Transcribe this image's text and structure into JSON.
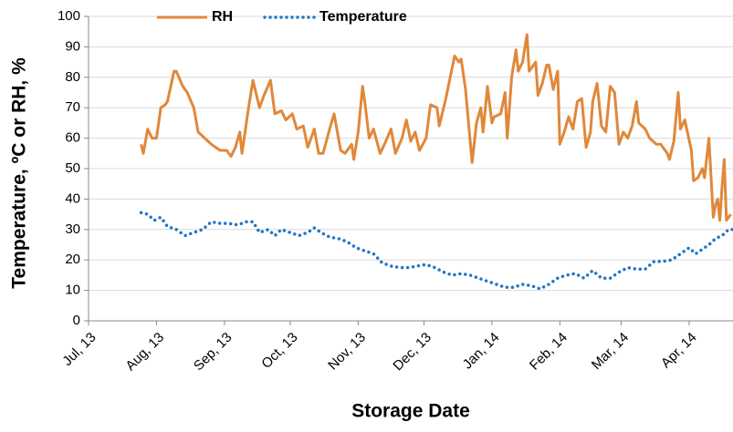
{
  "chart_data": {
    "type": "line",
    "x_label": "Storage Date",
    "y_label": "Temperature, ºC or RH, %",
    "xlim": [
      0,
      294
    ],
    "xticks": [
      {
        "value": 0,
        "label": "Jul, 13"
      },
      {
        "value": 31,
        "label": "Aug, 13"
      },
      {
        "value": 62,
        "label": "Sep, 13"
      },
      {
        "value": 92,
        "label": "Oct, 13"
      },
      {
        "value": 123,
        "label": "Nov, 13"
      },
      {
        "value": 153,
        "label": "Dec, 13"
      },
      {
        "value": 184,
        "label": "Jan, 14"
      },
      {
        "value": 215,
        "label": "Feb, 14"
      },
      {
        "value": 243,
        "label": "Mar, 14"
      },
      {
        "value": 274,
        "label": "Apr, 14"
      }
    ],
    "ylim": [
      0,
      100
    ],
    "yticks": [
      0,
      10,
      20,
      30,
      40,
      50,
      60,
      70,
      80,
      90,
      100
    ],
    "grid": true,
    "legend": "top",
    "series": [
      {
        "name": "RH",
        "color": "#e0883a",
        "style": "solid",
        "x": [
          24,
          25,
          27,
          29,
          31,
          33,
          35,
          36,
          39,
          40,
          43,
          45,
          48,
          50,
          53,
          56,
          60,
          63,
          65,
          67,
          69,
          70,
          73,
          75,
          78,
          80,
          83,
          85,
          88,
          90,
          93,
          95,
          98,
          100,
          103,
          105,
          107,
          110,
          112,
          115,
          117,
          120,
          121,
          123,
          125,
          126,
          128,
          130,
          133,
          135,
          138,
          140,
          143,
          145,
          147,
          149,
          151,
          154,
          156,
          159,
          160,
          163,
          165,
          167,
          169,
          170,
          172,
          174,
          175,
          177,
          179,
          180,
          182,
          184,
          185,
          188,
          190,
          191,
          193,
          195,
          196,
          198,
          200,
          201,
          204,
          205,
          207,
          209,
          210,
          212,
          214,
          215,
          217,
          219,
          221,
          223,
          225,
          227,
          229,
          230,
          232,
          234,
          236,
          238,
          240,
          242,
          244,
          246,
          248,
          250,
          251,
          254,
          256,
          259,
          261,
          264,
          265,
          267,
          269,
          270,
          272,
          275,
          276,
          278,
          280,
          281,
          283,
          285,
          286,
          287,
          288,
          289,
          290,
          291,
          293
        ],
        "values": [
          58,
          55,
          63,
          60,
          60,
          70,
          71,
          72,
          82,
          82,
          77,
          75,
          70,
          62,
          60,
          58,
          56,
          56,
          54,
          57,
          62,
          55,
          70,
          79,
          70,
          74,
          79,
          68,
          69,
          66,
          68,
          63,
          64,
          57,
          63,
          55,
          55,
          63,
          68,
          56,
          55,
          58,
          53,
          62,
          77,
          72,
          60,
          63,
          55,
          58,
          63,
          55,
          60,
          66,
          59,
          62,
          56,
          60,
          71,
          70,
          64,
          73,
          80,
          87,
          85,
          86,
          76,
          60,
          52,
          65,
          70,
          62,
          77,
          65,
          67,
          68,
          75,
          60,
          80,
          89,
          82,
          85,
          94,
          82,
          85,
          74,
          78,
          84,
          84,
          76,
          82,
          58,
          62,
          67,
          63,
          72,
          73,
          57,
          62,
          72,
          78,
          64,
          62,
          77,
          75,
          58,
          62,
          60,
          64,
          72,
          65,
          63,
          60,
          58,
          58,
          55,
          53,
          59,
          75,
          63,
          66,
          56,
          46,
          47,
          50,
          47,
          60,
          34,
          38,
          40,
          33,
          44,
          53,
          33,
          35
        ]
      },
      {
        "name": "Temperature",
        "color": "#1f77c4",
        "style": "dotted",
        "x": [
          24,
          27,
          30,
          33,
          36,
          40,
          44,
          48,
          52,
          56,
          60,
          64,
          68,
          72,
          75,
          78,
          82,
          85,
          88,
          92,
          96,
          100,
          103,
          106,
          110,
          114,
          118,
          122,
          126,
          130,
          134,
          138,
          142,
          146,
          150,
          154,
          158,
          162,
          166,
          170,
          174,
          178,
          182,
          186,
          190,
          194,
          198,
          202,
          206,
          210,
          214,
          218,
          222,
          226,
          230,
          234,
          238,
          242,
          246,
          250,
          254,
          258,
          262,
          266,
          270,
          274,
          277,
          280,
          283,
          286,
          289,
          292,
          294
        ],
        "values": [
          35.5,
          35,
          33,
          34,
          31,
          30,
          28,
          29,
          30,
          32.5,
          32,
          32,
          31.5,
          32.5,
          32.5,
          29,
          30,
          28,
          30,
          29,
          28,
          29,
          30.5,
          29,
          27.5,
          27,
          26,
          24,
          23,
          22,
          19,
          18,
          17.5,
          17.5,
          18,
          18.5,
          17.5,
          16,
          15,
          15.5,
          15,
          14,
          13,
          12,
          11,
          11,
          12,
          11.5,
          10.5,
          12,
          14,
          15,
          15.5,
          14,
          16.5,
          14,
          14,
          16,
          17.5,
          17,
          17,
          19.5,
          19.5,
          20,
          22,
          24,
          22,
          23.5,
          25,
          27,
          28,
          30,
          30
        ]
      }
    ]
  }
}
